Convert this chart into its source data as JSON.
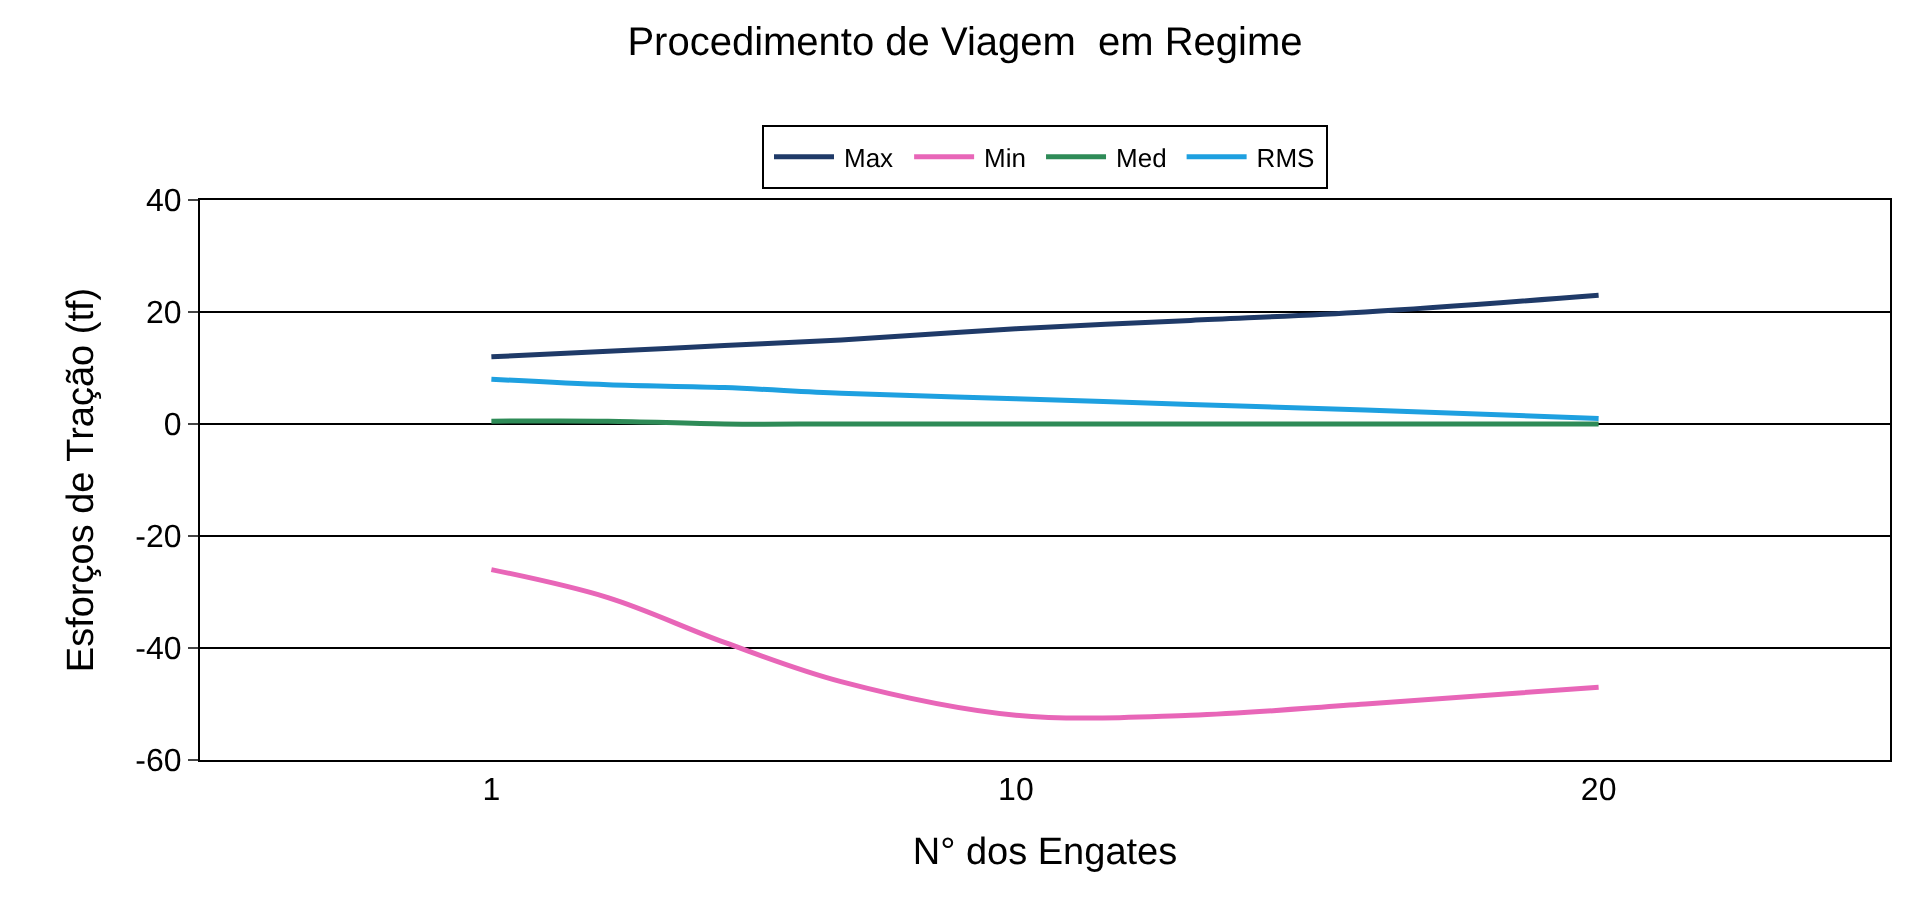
{
  "chart_data": {
    "type": "line",
    "title": "Procedimento de Viagem  em Regime",
    "xlabel": "N° dos Engates",
    "ylabel": "Esforços de Tração (tf)",
    "x": [
      1,
      3,
      5,
      7,
      10,
      13,
      16,
      20
    ],
    "series": [
      {
        "name": "Max",
        "color": "#1f3a68",
        "values": [
          12,
          13,
          14,
          15,
          17,
          18.5,
          20,
          23
        ]
      },
      {
        "name": "Min",
        "color": "#e866b8",
        "values": [
          -26,
          -31,
          -39,
          -46,
          -52,
          -52,
          -50,
          -47
        ]
      },
      {
        "name": "Med",
        "color": "#2e8b57",
        "values": [
          0.5,
          0.5,
          0,
          0,
          0,
          0,
          0,
          0
        ]
      },
      {
        "name": "RMS",
        "color": "#1ea0e0",
        "values": [
          8,
          7,
          6.5,
          5.5,
          4.5,
          3.5,
          2.5,
          1
        ]
      }
    ],
    "xlim": [
      -4,
      25
    ],
    "xticks": [
      1,
      10,
      20
    ],
    "ylim": [
      -60,
      40
    ],
    "yticks": [
      -60,
      -40,
      -20,
      0,
      20,
      40
    ],
    "grid": "y",
    "legend": "top",
    "marker": "none",
    "line_style": "solid"
  }
}
